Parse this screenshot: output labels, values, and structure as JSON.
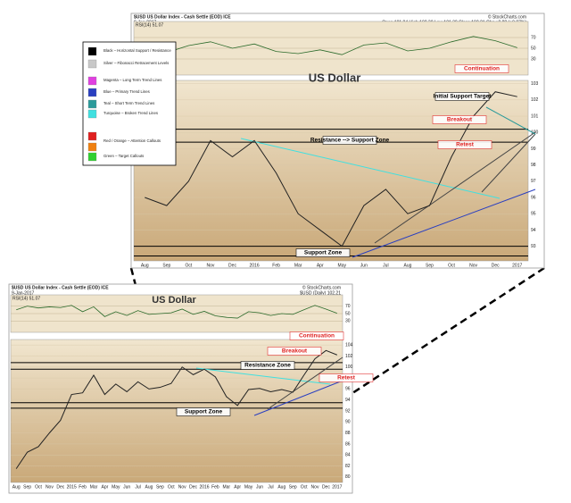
{
  "chart_data": [
    {
      "type": "line",
      "header": "$USD US Dollar Index - Cash Settle (EOD) ICE",
      "date": "9-Jan-2017",
      "quote": "Open 101.84 High 102.30 Low 101.30 Close 102.21 Chg +0.88 (+0.87%)",
      "source": "© StockCharts.com",
      "title": "US Dollar",
      "rsi": {
        "label": "RSI(14) 51.07",
        "values": [
          45,
          42,
          55,
          62,
          50,
          58,
          44,
          40,
          47,
          38,
          56,
          60,
          45,
          50,
          62,
          72,
          64,
          51
        ],
        "ylim": [
          0,
          100
        ],
        "yticks": [
          30,
          50,
          70
        ]
      },
      "categories": [
        "Aug",
        "Sep",
        "Oct",
        "Nov",
        "Dec",
        "2016",
        "Feb",
        "Mar",
        "Apr",
        "May",
        "Jun",
        "Jul",
        "Aug",
        "Sep",
        "Oct",
        "Nov",
        "Dec",
        "2017"
      ],
      "series": [
        {
          "name": "$USD",
          "color": "#222222",
          "values": [
            96.0,
            95.5,
            97.0,
            99.5,
            98.5,
            99.5,
            97.5,
            95.0,
            94.0,
            93.0,
            95.5,
            96.5,
            95.0,
            95.5,
            98.5,
            101.0,
            102.5,
            102.2
          ]
        }
      ],
      "ylim": [
        92.1,
        103.2
      ],
      "yticks": [
        93,
        94,
        95,
        96,
        97,
        98,
        99,
        100,
        101,
        102,
        103
      ],
      "hlines": [
        100.2,
        99.4,
        93.0,
        92.4
      ],
      "annotations": [
        "Continuation",
        "Initial Support Target",
        "Breakout",
        "Retest",
        "Resistance --> Support Zone",
        "Support Zone"
      ]
    },
    {
      "type": "line",
      "header": "$USD US Dollar Index - Cash Settle (EOD) ICE",
      "date": "9-Jan-2017",
      "quote": "$USD (Daily) 102.21",
      "source": "© StockCharts.com",
      "title": "US Dollar",
      "rsi": {
        "label": "RSI(14) 51.07",
        "values": [
          60,
          70,
          65,
          68,
          66,
          72,
          55,
          68,
          42,
          55,
          45,
          58,
          48,
          50,
          52,
          62,
          48,
          56,
          44,
          40,
          38,
          55,
          52,
          45,
          50,
          48,
          60,
          72,
          62,
          51
        ],
        "ylim": [
          0,
          100
        ],
        "yticks": [
          30,
          50,
          70
        ]
      },
      "categories": [
        "Aug",
        "Sep",
        "Oct",
        "Nov",
        "Dec",
        "2015",
        "Feb",
        "Mar",
        "Apr",
        "May",
        "Jun",
        "Jul",
        "Aug",
        "Sep",
        "Oct",
        "Nov",
        "Dec",
        "2016",
        "Feb",
        "Mar",
        "Apr",
        "May",
        "Jun",
        "Jul",
        "Aug",
        "Sep",
        "Oct",
        "Nov",
        "Dec",
        "2017"
      ],
      "series": [
        {
          "name": "$USD",
          "color": "#222222",
          "values": [
            81.5,
            84.5,
            85.5,
            88.0,
            90.3,
            95.0,
            95.3,
            98.5,
            95.0,
            96.9,
            95.5,
            97.3,
            96.0,
            96.3,
            97.0,
            100.0,
            98.6,
            99.6,
            98.2,
            94.6,
            93.0,
            95.9,
            96.1,
            95.5,
            95.9,
            95.4,
            98.5,
            101.5,
            103.0,
            102.2
          ]
        }
      ],
      "ylim": [
        79,
        105
      ],
      "yticks": [
        80,
        82,
        84,
        86,
        88,
        90,
        92,
        94,
        96,
        98,
        100,
        102,
        104
      ],
      "hlines": [
        100.8,
        99.6,
        93.5,
        92.5
      ],
      "annotations": [
        "Continuation",
        "Breakout",
        "Resistance Zone",
        "Retest",
        "Support Zone"
      ]
    }
  ],
  "legend": [
    {
      "label": "Black – Horizontal Support / Resistance",
      "colors": [
        "#000000"
      ]
    },
    {
      "label": "Silver – Fibonacci Retracement Levels",
      "colors": [
        "#c8c8c8"
      ]
    },
    {
      "label": "Magenta – Long Term Trend Lines",
      "colors": [
        "#e040e0"
      ]
    },
    {
      "label": "Blue – Primary Trend Lines",
      "colors": [
        "#2a3fc0"
      ]
    },
    {
      "label": "Teal – Short Term Trend Lines",
      "colors": [
        "#2a9a9a"
      ]
    },
    {
      "label": "Turquoise – Broken Trend Lines",
      "colors": [
        "#40e0e0"
      ]
    },
    {
      "label": "Red / Orange – Attention Callouts",
      "colors": [
        "#e02020",
        "#f08010"
      ]
    },
    {
      "label": "Green – Target Callouts",
      "colors": [
        "#30d030"
      ]
    }
  ]
}
